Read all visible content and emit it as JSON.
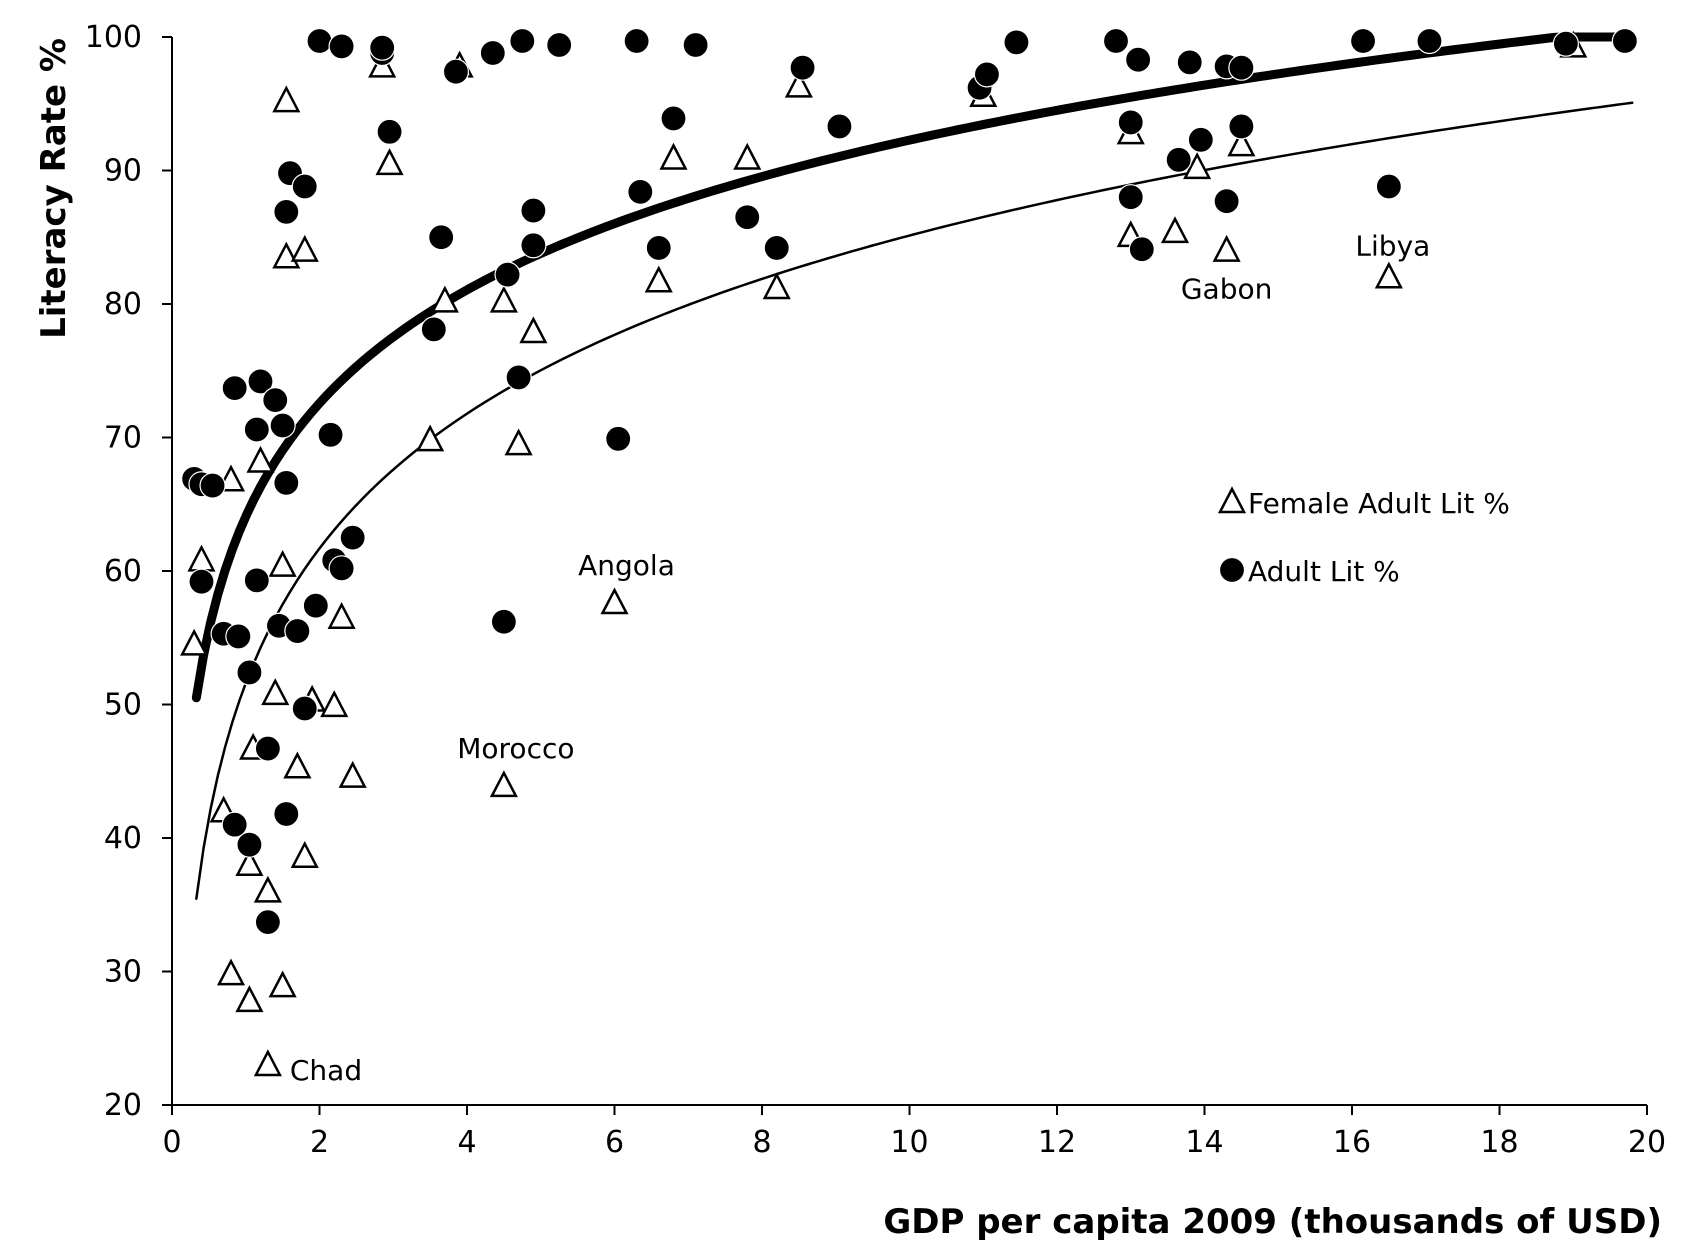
{
  "chart_data": {
    "type": "scatter",
    "xlabel": "GDP per capita 2009 (thousands of USD)",
    "ylabel": "Literacy Rate %",
    "xlim": [
      0,
      20
    ],
    "ylim": [
      20,
      100
    ],
    "x_ticks": [
      0,
      2,
      4,
      6,
      8,
      10,
      12,
      14,
      16,
      18,
      20
    ],
    "y_ticks": [
      20,
      30,
      40,
      50,
      60,
      70,
      80,
      90,
      100
    ],
    "x_tick_labels": [
      "0",
      "2",
      "4",
      "6",
      "8",
      "10",
      "12",
      "14",
      "16",
      "18",
      "20"
    ],
    "y_tick_labels": [
      "20",
      "30",
      "40",
      "50",
      "60",
      "70",
      "80",
      "90",
      "100"
    ],
    "grid": false,
    "legend": {
      "placement": "right-middle",
      "entries": [
        {
          "label": "Female Adult Lit %",
          "marker": "triangle-open"
        },
        {
          "label": "Adult Lit %",
          "marker": "circle-filled"
        }
      ]
    },
    "series": [
      {
        "name": "Female Adult Lit %",
        "marker": "triangle-open",
        "color": "#000000",
        "points": [
          [
            0.3,
            54.5
          ],
          [
            0.4,
            60.8
          ],
          [
            0.8,
            29.8
          ],
          [
            0.8,
            66.8
          ],
          [
            0.7,
            42.0
          ],
          [
            1.05,
            27.8
          ],
          [
            1.05,
            38.0
          ],
          [
            1.1,
            46.7
          ],
          [
            1.2,
            68.2
          ],
          [
            1.3,
            36.0
          ],
          [
            1.3,
            23.0
          ],
          [
            1.4,
            50.8
          ],
          [
            1.5,
            28.9
          ],
          [
            1.5,
            60.4
          ],
          [
            1.55,
            83.5
          ],
          [
            1.55,
            95.2
          ],
          [
            1.7,
            45.3
          ],
          [
            1.8,
            38.6
          ],
          [
            1.8,
            84.0
          ],
          [
            1.9,
            50.3
          ],
          [
            2.2,
            49.9
          ],
          [
            2.3,
            56.5
          ],
          [
            2.45,
            44.6
          ],
          [
            2.85,
            97.8
          ],
          [
            2.95,
            90.5
          ],
          [
            3.5,
            69.8
          ],
          [
            3.7,
            80.2
          ],
          [
            3.9,
            97.8
          ],
          [
            4.5,
            43.9
          ],
          [
            4.5,
            80.2
          ],
          [
            4.7,
            69.5
          ],
          [
            4.9,
            77.9
          ],
          [
            6.0,
            57.6
          ],
          [
            6.6,
            81.7
          ],
          [
            6.8,
            90.9
          ],
          [
            7.8,
            90.9
          ],
          [
            8.2,
            81.2
          ],
          [
            8.5,
            96.3
          ],
          [
            11.0,
            95.6
          ],
          [
            13.0,
            85.1
          ],
          [
            13.0,
            92.8
          ],
          [
            13.6,
            85.4
          ],
          [
            13.9,
            90.2
          ],
          [
            14.3,
            84.0
          ],
          [
            14.5,
            91.9
          ],
          [
            16.5,
            82.0
          ],
          [
            19.0,
            99.3
          ]
        ]
      },
      {
        "name": "Adult Lit %",
        "marker": "circle-filled",
        "color": "#000000",
        "points": [
          [
            0.3,
            66.9
          ],
          [
            0.4,
            66.5
          ],
          [
            0.4,
            59.2
          ],
          [
            0.55,
            66.4
          ],
          [
            0.7,
            55.3
          ],
          [
            0.85,
            41.0
          ],
          [
            0.85,
            73.7
          ],
          [
            0.9,
            55.1
          ],
          [
            1.05,
            39.5
          ],
          [
            1.05,
            52.4
          ],
          [
            1.15,
            59.3
          ],
          [
            1.15,
            70.6
          ],
          [
            1.2,
            74.2
          ],
          [
            1.3,
            33.7
          ],
          [
            1.3,
            46.7
          ],
          [
            1.4,
            72.8
          ],
          [
            1.45,
            55.9
          ],
          [
            1.5,
            70.9
          ],
          [
            1.55,
            41.8
          ],
          [
            1.55,
            66.6
          ],
          [
            1.55,
            86.9
          ],
          [
            1.6,
            89.8
          ],
          [
            1.7,
            55.5
          ],
          [
            1.8,
            49.7
          ],
          [
            1.8,
            88.8
          ],
          [
            1.95,
            57.4
          ],
          [
            2.0,
            99.7
          ],
          [
            2.15,
            70.2
          ],
          [
            2.2,
            60.8
          ],
          [
            2.3,
            60.2
          ],
          [
            2.3,
            99.3
          ],
          [
            2.45,
            62.5
          ],
          [
            2.85,
            98.8
          ],
          [
            2.85,
            99.2
          ],
          [
            2.95,
            92.9
          ],
          [
            3.55,
            78.1
          ],
          [
            3.65,
            85.0
          ],
          [
            3.85,
            97.4
          ],
          [
            4.35,
            98.8
          ],
          [
            4.5,
            56.2
          ],
          [
            4.55,
            82.2
          ],
          [
            4.7,
            74.5
          ],
          [
            4.75,
            99.7
          ],
          [
            4.9,
            87.0
          ],
          [
            4.9,
            84.4
          ],
          [
            5.25,
            99.4
          ],
          [
            6.05,
            69.9
          ],
          [
            6.3,
            99.7
          ],
          [
            6.35,
            88.4
          ],
          [
            6.6,
            84.2
          ],
          [
            6.8,
            93.9
          ],
          [
            7.1,
            99.4
          ],
          [
            7.8,
            86.5
          ],
          [
            8.2,
            84.2
          ],
          [
            8.55,
            97.7
          ],
          [
            9.05,
            93.3
          ],
          [
            10.95,
            96.2
          ],
          [
            11.05,
            97.2
          ],
          [
            11.45,
            99.6
          ],
          [
            12.8,
            99.7
          ],
          [
            13.0,
            88.0
          ],
          [
            13.0,
            93.6
          ],
          [
            13.1,
            98.3
          ],
          [
            13.15,
            84.1
          ],
          [
            13.65,
            90.8
          ],
          [
            13.8,
            98.1
          ],
          [
            13.95,
            92.3
          ],
          [
            14.3,
            87.7
          ],
          [
            14.3,
            97.8
          ],
          [
            14.5,
            97.7
          ],
          [
            14.5,
            93.3
          ],
          [
            16.15,
            99.7
          ],
          [
            16.5,
            88.8
          ],
          [
            17.05,
            99.7
          ],
          [
            18.9,
            99.5
          ],
          [
            19.7,
            99.7
          ]
        ]
      }
    ],
    "trendlines": [
      {
        "series": "Adult Lit %",
        "kind": "logarithmic",
        "style": "thick",
        "x_range": [
          0.33,
          19.8
        ]
      },
      {
        "series": "Female Adult Lit %",
        "kind": "logarithmic",
        "style": "thin",
        "x_range": [
          0.33,
          19.8
        ]
      }
    ],
    "annotations": [
      {
        "text": "Chad",
        "x": 1.3,
        "y": 23.0
      },
      {
        "text": "Morocco",
        "x": 4.5,
        "y": 43.9
      },
      {
        "text": "Angola",
        "x": 6.0,
        "y": 57.6
      },
      {
        "text": "Gabon",
        "x": 14.3,
        "y": 84.0
      },
      {
        "text": "Libya",
        "x": 16.5,
        "y": 82.0
      }
    ]
  }
}
